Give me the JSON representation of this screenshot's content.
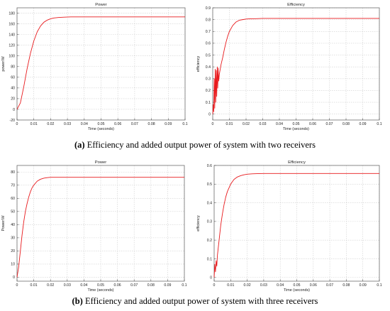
{
  "captions": {
    "a": {
      "tag": "(a)",
      "text": " Efficiency and added output power of system with two receivers"
    },
    "b": {
      "tag": "(b)",
      "text": " Efficiency and added output power of system with three receivers"
    }
  },
  "chart_data": [
    {
      "type": "line",
      "title": "Power",
      "xlabel": "Time (seconds)",
      "ylabel": "power/W",
      "xlim": [
        0,
        0.1
      ],
      "ylim": [
        -20,
        190
      ],
      "xticks": [
        0,
        0.01,
        0.02,
        0.03,
        0.04,
        0.05,
        0.06,
        0.07,
        0.08,
        0.09,
        0.1
      ],
      "xtick_labels": [
        "0",
        "0.01",
        "0.02",
        "0.03",
        "0.04",
        "0.05",
        "0.06",
        "0.07",
        "0.08",
        "0.09",
        "0.1"
      ],
      "yticks": [
        -20,
        0,
        20,
        40,
        60,
        80,
        100,
        120,
        140,
        160,
        180
      ],
      "ytick_labels": [
        "-20",
        "0",
        "20",
        "40",
        "60",
        "80",
        "100",
        "120",
        "140",
        "160",
        "180"
      ],
      "grid": true,
      "line_color": "#e8191c",
      "series": [
        {
          "x": [
            0,
            0.002,
            0.004,
            0.006,
            0.008,
            0.01,
            0.012,
            0.014,
            0.016,
            0.018,
            0.02,
            0.022,
            0.025,
            0.028,
            0.032,
            0.036,
            0.04,
            0.05,
            0.06,
            0.07,
            0.08,
            0.09,
            0.1
          ],
          "y": [
            0,
            12,
            42,
            76,
            105,
            128,
            145,
            156,
            163,
            167,
            169.5,
            171,
            172,
            172.5,
            173,
            173,
            173,
            173,
            173,
            173,
            173,
            173,
            173
          ]
        }
      ]
    },
    {
      "type": "line",
      "title": "Efficiency",
      "xlabel": "Time (seconds)",
      "ylabel": "efficiency",
      "xlim": [
        0,
        0.1
      ],
      "ylim": [
        -0.05,
        0.9
      ],
      "xticks": [
        0,
        0.01,
        0.02,
        0.03,
        0.04,
        0.05,
        0.06,
        0.07,
        0.08,
        0.09,
        0.1
      ],
      "xtick_labels": [
        "0",
        "0.01",
        "0.02",
        "0.03",
        "0.04",
        "0.05",
        "0.06",
        "0.07",
        "0.08",
        "0.09",
        "0.1"
      ],
      "yticks": [
        0,
        0.1,
        0.2,
        0.3,
        0.4,
        0.5,
        0.6,
        0.7,
        0.8,
        0.9
      ],
      "ytick_labels": [
        "0",
        "0.1",
        "0.2",
        "0.3",
        "0.4",
        "0.5",
        "0.6",
        "0.7",
        "0.8",
        "0.9"
      ],
      "grid": true,
      "line_color": "#e8191c",
      "series": [
        {
          "x": [
            0,
            0.0003,
            0.0006,
            0.0009,
            0.0012,
            0.0015,
            0.0018,
            0.0021,
            0.0024,
            0.0027,
            0.003,
            0.0033,
            0.0036,
            0.004,
            0.0045,
            0.005,
            0.006,
            0.007,
            0.008,
            0.009,
            0.01,
            0.012,
            0.014,
            0.016,
            0.018,
            0.02,
            0.023,
            0.026,
            0.03,
            0.035,
            0.04,
            0.05,
            0.06,
            0.07,
            0.08,
            0.09,
            0.1
          ],
          "y": [
            0,
            0.08,
            0.02,
            0.3,
            0.05,
            0.38,
            0.1,
            0.37,
            0.15,
            0.4,
            0.22,
            0.39,
            0.28,
            0.34,
            0.38,
            0.42,
            0.48,
            0.55,
            0.61,
            0.66,
            0.7,
            0.75,
            0.78,
            0.795,
            0.8,
            0.805,
            0.807,
            0.808,
            0.81,
            0.81,
            0.81,
            0.81,
            0.81,
            0.81,
            0.81,
            0.81,
            0.81
          ]
        }
      ]
    },
    {
      "type": "line",
      "title": "Power",
      "xlabel": "Time (seconds)",
      "ylabel": "Power/W",
      "xlim": [
        0,
        0.1
      ],
      "ylim": [
        -3,
        85
      ],
      "xticks": [
        0,
        0.01,
        0.02,
        0.03,
        0.04,
        0.05,
        0.06,
        0.07,
        0.08,
        0.09,
        0.1
      ],
      "xtick_labels": [
        "0",
        "0.01",
        "0.02",
        "0.03",
        "0.04",
        "0.05",
        "0.06",
        "0.07",
        "0.08",
        "0.09",
        "0.1"
      ],
      "yticks": [
        0,
        10,
        20,
        30,
        40,
        50,
        60,
        70,
        80
      ],
      "ytick_labels": [
        "0",
        "10",
        "20",
        "30",
        "40",
        "50",
        "60",
        "70",
        "80"
      ],
      "grid": true,
      "line_color": "#e8191c",
      "series": [
        {
          "x": [
            0,
            0.001,
            0.002,
            0.003,
            0.004,
            0.005,
            0.006,
            0.007,
            0.008,
            0.009,
            0.01,
            0.012,
            0.014,
            0.016,
            0.018,
            0.02,
            0.023,
            0.026,
            0.03,
            0.04,
            0.05,
            0.06,
            0.07,
            0.08,
            0.09,
            0.1
          ],
          "y": [
            0,
            8,
            20,
            32,
            42,
            50,
            56,
            61,
            65,
            68,
            70,
            73,
            74.5,
            75.3,
            75.7,
            76,
            76,
            76,
            76,
            76,
            76,
            76,
            76,
            76,
            76,
            76
          ]
        }
      ]
    },
    {
      "type": "line",
      "title": "Efficiency",
      "xlabel": "Time (seconds)",
      "ylabel": "efficiency",
      "xlim": [
        0,
        0.1
      ],
      "ylim": [
        -0.02,
        0.6
      ],
      "xticks": [
        0,
        0.01,
        0.02,
        0.03,
        0.04,
        0.05,
        0.06,
        0.07,
        0.08,
        0.09,
        0.1
      ],
      "xtick_labels": [
        "0",
        "0.01",
        "0.02",
        "0.03",
        "0.04",
        "0.05",
        "0.06",
        "0.07",
        "0.08",
        "0.09",
        "0.1"
      ],
      "yticks": [
        0,
        0.1,
        0.2,
        0.3,
        0.4,
        0.5,
        0.6
      ],
      "ytick_labels": [
        "0",
        "0.1",
        "0.2",
        "0.3",
        "0.4",
        "0.5",
        "0.6"
      ],
      "grid": true,
      "line_color": "#e8191c",
      "series": [
        {
          "x": [
            0,
            0.0004,
            0.0008,
            0.0012,
            0.0016,
            0.002,
            0.003,
            0.004,
            0.005,
            0.006,
            0.007,
            0.008,
            0.009,
            0.01,
            0.012,
            0.014,
            0.016,
            0.018,
            0.02,
            0.023,
            0.026,
            0.03,
            0.04,
            0.05,
            0.06,
            0.07,
            0.08,
            0.09,
            0.1
          ],
          "y": [
            0,
            0.07,
            0.03,
            0.09,
            0.06,
            0.12,
            0.2,
            0.28,
            0.34,
            0.39,
            0.43,
            0.46,
            0.48,
            0.5,
            0.525,
            0.538,
            0.545,
            0.55,
            0.553,
            0.555,
            0.556,
            0.557,
            0.557,
            0.557,
            0.557,
            0.557,
            0.557,
            0.557,
            0.557
          ]
        }
      ]
    }
  ]
}
